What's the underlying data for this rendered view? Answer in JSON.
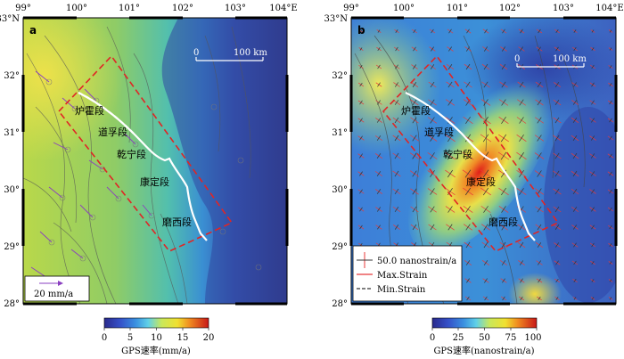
{
  "map_a": {
    "panel_label": "a",
    "lon_ticks": [
      "99°",
      "100°",
      "101°",
      "102°",
      "103°",
      "104°E"
    ],
    "lat_ticks": [
      "33°N",
      "32°",
      "31°",
      "30°",
      "29°",
      "28°"
    ],
    "scalebar": {
      "start": "0",
      "end": "100 km"
    },
    "segments": [
      "炉霍段",
      "道孚段",
      "乾宁段",
      "康定段",
      "磨西段"
    ],
    "velocity_legend": "20 mm/a"
  },
  "map_b": {
    "panel_label": "b",
    "lon_ticks": [
      "99°",
      "100°",
      "101°",
      "102°",
      "103°",
      "104°E"
    ],
    "lat_ticks": [
      "33°N",
      "32°",
      "31°",
      "30°",
      "29°",
      "28°"
    ],
    "scalebar": {
      "start": "0",
      "end": "100 km"
    },
    "segments": [
      "炉霍段",
      "道孚段",
      "乾宁段",
      "康定段",
      "磨西段"
    ],
    "legend": {
      "strain_scale": "50.0 nanostrain/a",
      "max_strain": "Max.Strain",
      "min_strain": "Min.Strain"
    }
  },
  "colorbar_a": {
    "ticks": [
      "0",
      "5",
      "10",
      "15",
      "20"
    ],
    "label": "GPS速率(mm/a)"
  },
  "colorbar_b": {
    "ticks": [
      "0",
      "25",
      "50",
      "75",
      "100"
    ],
    "label": "GPS速率(nanostrain/a)"
  },
  "colors": {
    "max_strain": "#e8393a",
    "min_strain": "#333333",
    "zone_boundary": "#e02525",
    "fault_trace": "#ffffff",
    "velocity_arrow": "#8a3fc0"
  }
}
